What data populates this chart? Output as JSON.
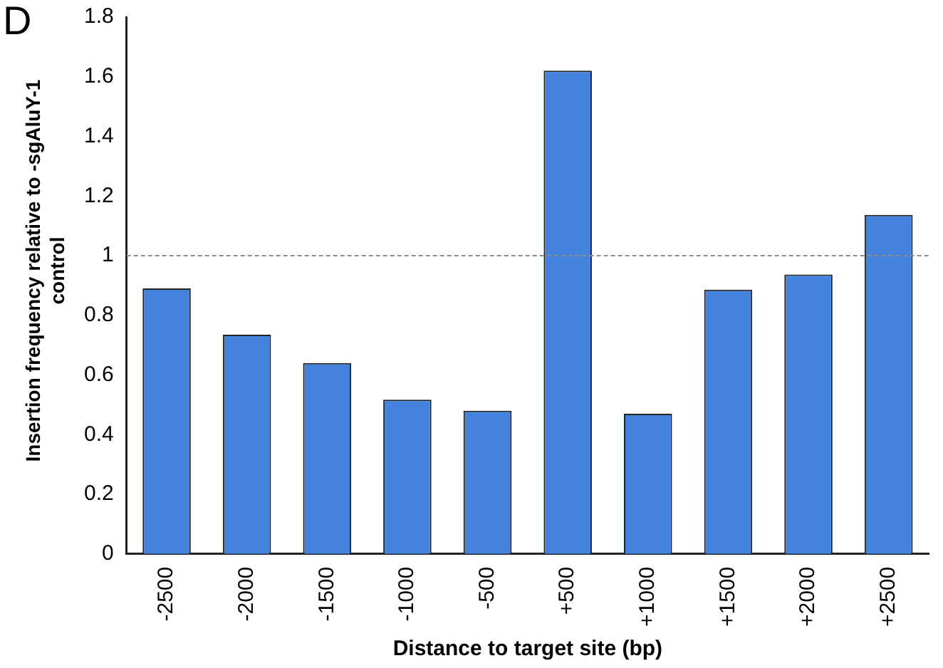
{
  "chart_data": {
    "type": "bar",
    "xlabel": "Distance to target site (bp)",
    "ylabel": "Insertion frequency relative to -sgAluY-1 control",
    "categories": [
      "-2500",
      "-2000",
      "-1500",
      "-1000",
      "-500",
      "+500",
      "+1000",
      "+1500",
      "+2000",
      "+2500"
    ],
    "values": [
      0.89,
      0.735,
      0.64,
      0.517,
      0.48,
      1.62,
      0.47,
      0.886,
      0.937,
      1.137
    ],
    "color": "#4383dd",
    "ylim": [
      0,
      1.8
    ],
    "yticks": [
      0,
      {
        "value": 0.2,
        "label": "0.2"
      },
      {
        "value": 0.4,
        "label": "0.4"
      },
      {
        "value": 0.6,
        "label": "0.6"
      },
      {
        "value": 0.8,
        "label": "0.8"
      },
      1,
      {
        "value": 1.2,
        "label": "1.2"
      },
      {
        "value": 1.4,
        "label": "1.4"
      },
      {
        "value": 1.6,
        "label": "1.6"
      },
      {
        "value": 1.8,
        "label": "1.8"
      }
    ],
    "ref_lines": [
      {
        "axis": "y",
        "value": 1,
        "color": "#8c8c8c",
        "line_style": "dashed"
      }
    ],
    "annotations": [
      "D"
    ],
    "grid": false,
    "legend": false
  }
}
